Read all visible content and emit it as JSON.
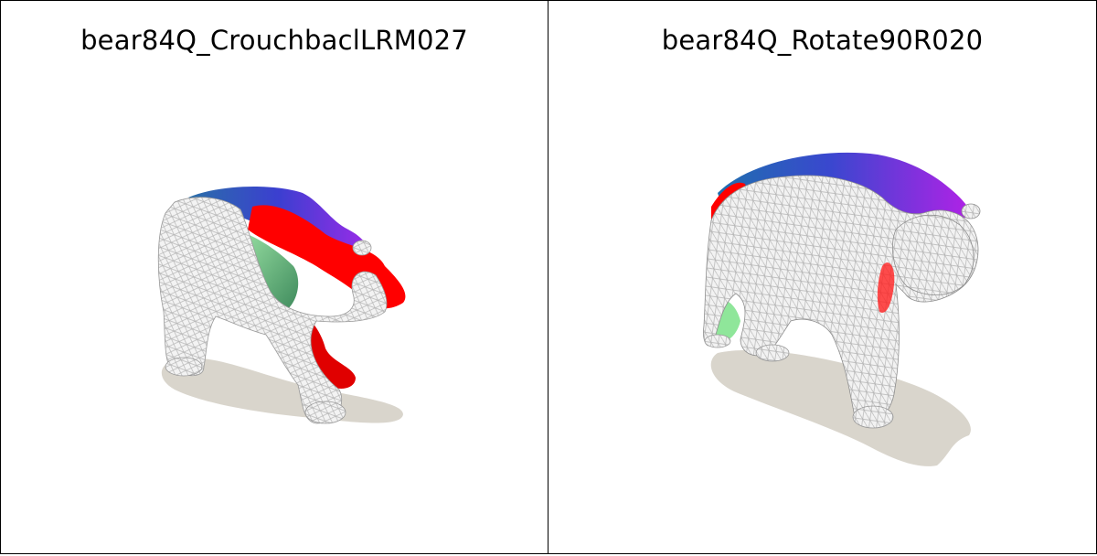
{
  "panels": [
    {
      "title": "bear84Q_CrouchbaclLRM027"
    },
    {
      "title": "bear84Q_Rotate90R020"
    }
  ],
  "colors": {
    "shadow": "#d9d5cc",
    "mesh_fill": "#f2f2f2",
    "mesh_line": "#b9b9b9",
    "red": "#ff0000",
    "purple": "#8a1fe0",
    "blue": "#3850c0",
    "green": "#7fd98f"
  }
}
